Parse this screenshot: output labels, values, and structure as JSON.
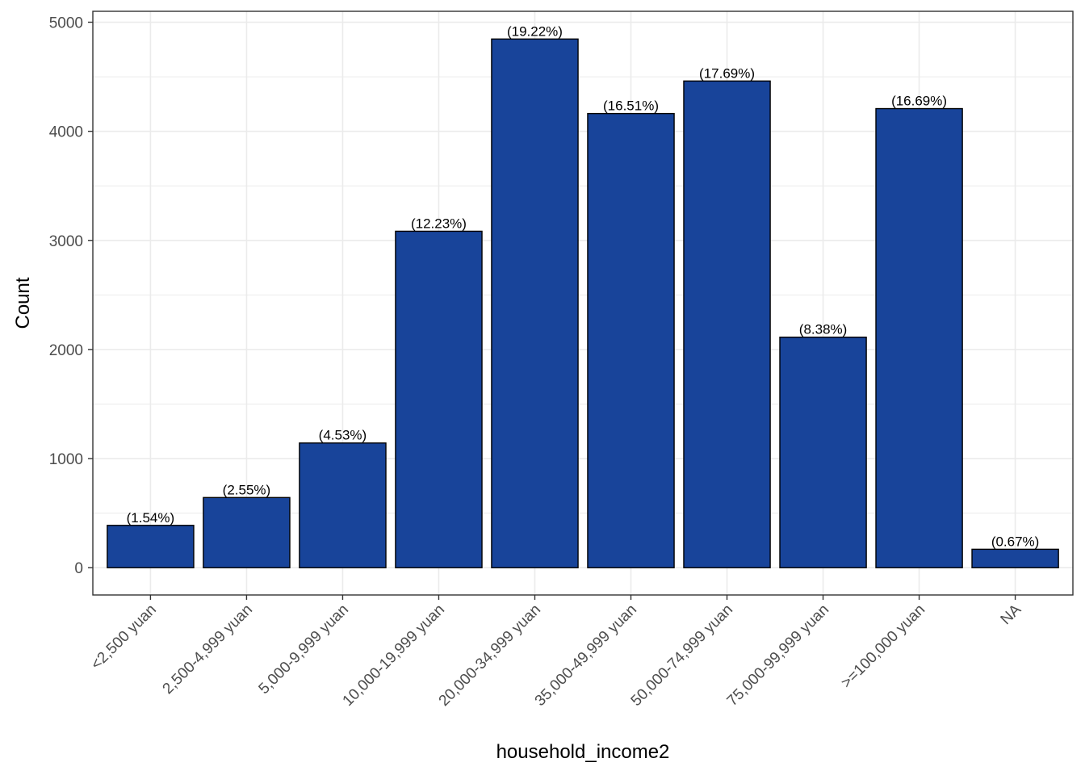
{
  "chart_data": {
    "type": "bar",
    "title": "",
    "xlabel": "household_income2",
    "ylabel": "Count",
    "categories": [
      "<2,500 yuan",
      "2,500-4,999 yuan",
      "5,000-9,999 yuan",
      "10,000-19,999 yuan",
      "20,000-34,999 yuan",
      "35,000-49,999 yuan",
      "50,000-74,999 yuan",
      "75,000-99,999 yuan",
      ">=100,000 yuan",
      "NA"
    ],
    "values": [
      388,
      643,
      1143,
      3084,
      4846,
      4163,
      4461,
      2113,
      4208,
      169
    ],
    "labels": [
      "(1.54%)",
      "(2.55%)",
      "(4.53%)",
      "(12.23%)",
      "(19.22%)",
      "(16.51%)",
      "(17.69%)",
      "(8.38%)",
      "(16.69%)",
      "(0.67%)"
    ],
    "yticks": [
      0,
      1000,
      2000,
      3000,
      4000,
      5000
    ],
    "ylim": [
      -250,
      5100
    ],
    "grid": true,
    "legend": "none",
    "colors": {
      "bar_fill": "#18449A",
      "bar_stroke": "#000000",
      "grid": "#ebebeb",
      "panel_border": "#333333"
    }
  }
}
